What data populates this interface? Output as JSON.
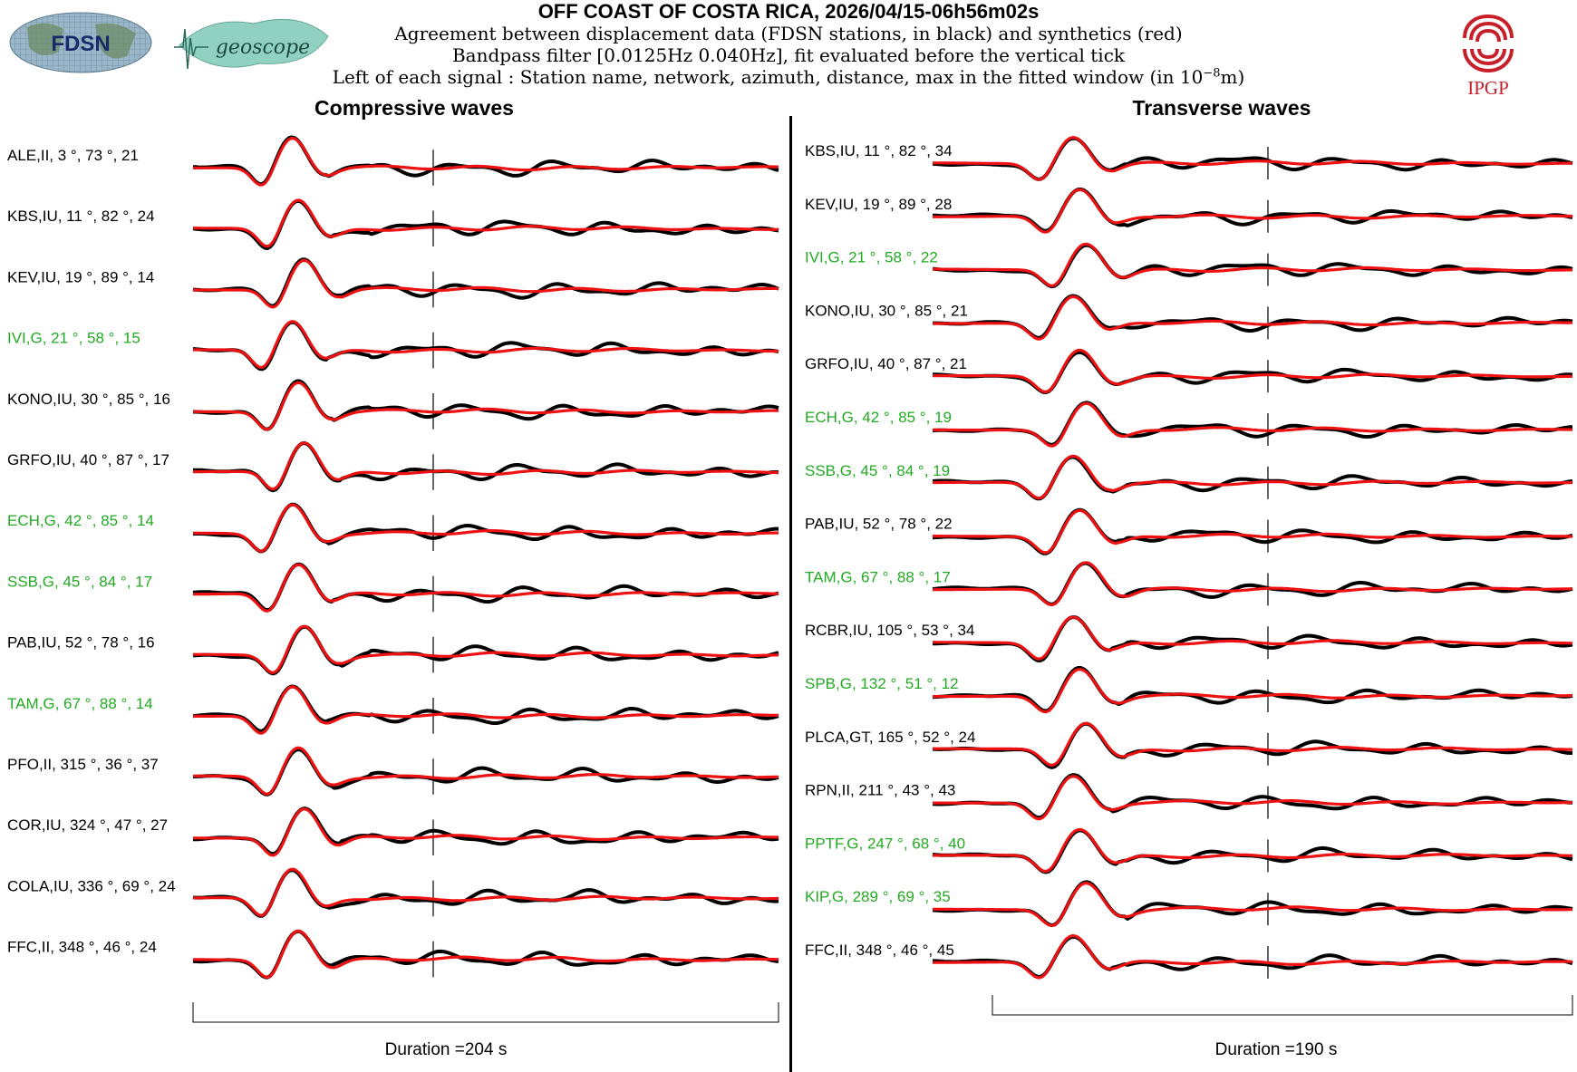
{
  "header": {
    "title": "OFF COAST OF COSTA RICA, 2026/04/15-06h56m02s",
    "line1": "Agreement between displacement data (FDSN stations, in black) and synthetics (red)",
    "line2": "Bandpass filter [0.0125Hz 0.040Hz], fit evaluated before the vertical tick",
    "line3_prefix": "Left of each signal : Station name, network, azimuth, distance, max in the fitted window (in 10",
    "line3_exp": "−8",
    "line3_suffix": "m)"
  },
  "logos": {
    "fdsn": "FDSN",
    "geoscope": "geoscope",
    "ipgp": "IPGP"
  },
  "colors": {
    "data": "#000000",
    "synthetic": "#ee1111",
    "label_default": "#000000",
    "label_geoscope": "#22aa22",
    "ipgp": "#c8202a"
  },
  "chart_data": [
    {
      "type": "line",
      "title": "Compressive waves",
      "duration_label": "Duration =204 s",
      "series_names": [
        "data",
        "synthetics"
      ],
      "stations": [
        {
          "label": "ALE,II, 3 °, 73 °, 21",
          "highlight": false
        },
        {
          "label": "KBS,IU, 11 °, 82 °, 24",
          "highlight": false
        },
        {
          "label": "KEV,IU, 19 °, 89 °, 14",
          "highlight": false
        },
        {
          "label": "IVI,G, 21 °, 58 °, 15",
          "highlight": true
        },
        {
          "label": "KONO,IU, 30 °, 85 °, 16",
          "highlight": false
        },
        {
          "label": "GRFO,IU, 40 °, 87 °, 17",
          "highlight": false
        },
        {
          "label": "ECH,G, 42 °, 85 °, 14",
          "highlight": true
        },
        {
          "label": "SSB,G, 45 °, 84 °, 17",
          "highlight": true
        },
        {
          "label": "PAB,IU, 52 °, 78 °, 16",
          "highlight": false
        },
        {
          "label": "TAM,G, 67 °, 88 °, 14",
          "highlight": true
        },
        {
          "label": "PFO,II, 315 °, 36 °, 37",
          "highlight": false
        },
        {
          "label": "COR,IU, 324 °, 47 °, 27",
          "highlight": false
        },
        {
          "label": "COLA,IU, 336 °, 69 °, 24",
          "highlight": false
        },
        {
          "label": "FFC,II, 348 °, 46 °, 24",
          "highlight": false
        }
      ]
    },
    {
      "type": "line",
      "title": "Transverse waves",
      "duration_label": "Duration =190 s",
      "series_names": [
        "data",
        "synthetics"
      ],
      "stations": [
        {
          "label": "KBS,IU, 11 °, 82 °, 34",
          "highlight": false
        },
        {
          "label": "KEV,IU, 19 °, 89 °, 28",
          "highlight": false
        },
        {
          "label": "IVI,G, 21 °, 58 °, 22",
          "highlight": true
        },
        {
          "label": "KONO,IU, 30 °, 85 °, 21",
          "highlight": false
        },
        {
          "label": "GRFO,IU, 40 °, 87 °, 21",
          "highlight": false
        },
        {
          "label": "ECH,G, 42 °, 85 °, 19",
          "highlight": true
        },
        {
          "label": "SSB,G, 45 °, 84 °, 19",
          "highlight": true
        },
        {
          "label": "PAB,IU, 52 °, 78 °, 22",
          "highlight": false
        },
        {
          "label": "TAM,G, 67 °, 88 °, 17",
          "highlight": true
        },
        {
          "label": "RCBR,IU, 105 °, 53 °, 34",
          "highlight": false
        },
        {
          "label": "SPB,G, 132 °, 51 °, 12",
          "highlight": true
        },
        {
          "label": "PLCA,GT, 165 °, 52 °, 24",
          "highlight": false
        },
        {
          "label": "RPN,II, 211 °, 43 °, 43",
          "highlight": false
        },
        {
          "label": "PPTF,G, 247 °, 68 °, 40",
          "highlight": true
        },
        {
          "label": "KIP,G, 289 °, 69 °, 35",
          "highlight": true
        },
        {
          "label": "FFC,II, 348 °, 46 °, 45",
          "highlight": false
        }
      ]
    }
  ]
}
